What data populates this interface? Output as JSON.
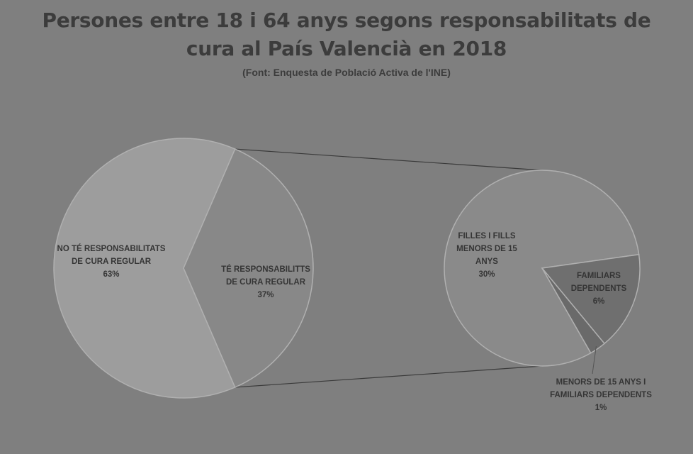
{
  "chart_data": {
    "type": "pie",
    "variant": "pie-of-pie",
    "title_lines": [
      "Persones entre 18 i 64 anys segons responsabilitats de",
      "cura al País Valencià en 2018"
    ],
    "subtitle": "(Font: Enquesta de Població Activa de l'INE)",
    "main_pie": {
      "slices": [
        {
          "label_lines": [
            "NO TÉ RESPONSABILITATS",
            "DE CURA REGULAR"
          ],
          "pct_text": "63%",
          "value": 63,
          "color": "#9d9d9d"
        },
        {
          "label_lines": [
            "TÉ RESPONSABILITTS",
            "DE CURA REGULAR"
          ],
          "pct_text": "37%",
          "value": 37,
          "color": "#888888"
        }
      ]
    },
    "secondary_pie": {
      "slices": [
        {
          "label_lines": [
            "FILLES I FILLS",
            "MENORS DE 15",
            "ANYS"
          ],
          "pct_text": "30%",
          "value": 30,
          "color": "#8a8a8a"
        },
        {
          "label_lines": [
            "FAMILIARS",
            "DEPENDENTS"
          ],
          "pct_text": "6%",
          "value": 6,
          "color": "#6f6f6f"
        },
        {
          "label_lines": [
            "MENORS DE 15 ANYS I",
            "FAMILIARS DEPENDENTS"
          ],
          "pct_text": "1%",
          "value": 1,
          "color": "#6a6a6a"
        }
      ]
    },
    "background": "#7f7f7f",
    "slice_border": "#b0b0b0",
    "connector_color": "#3a3a3a"
  }
}
